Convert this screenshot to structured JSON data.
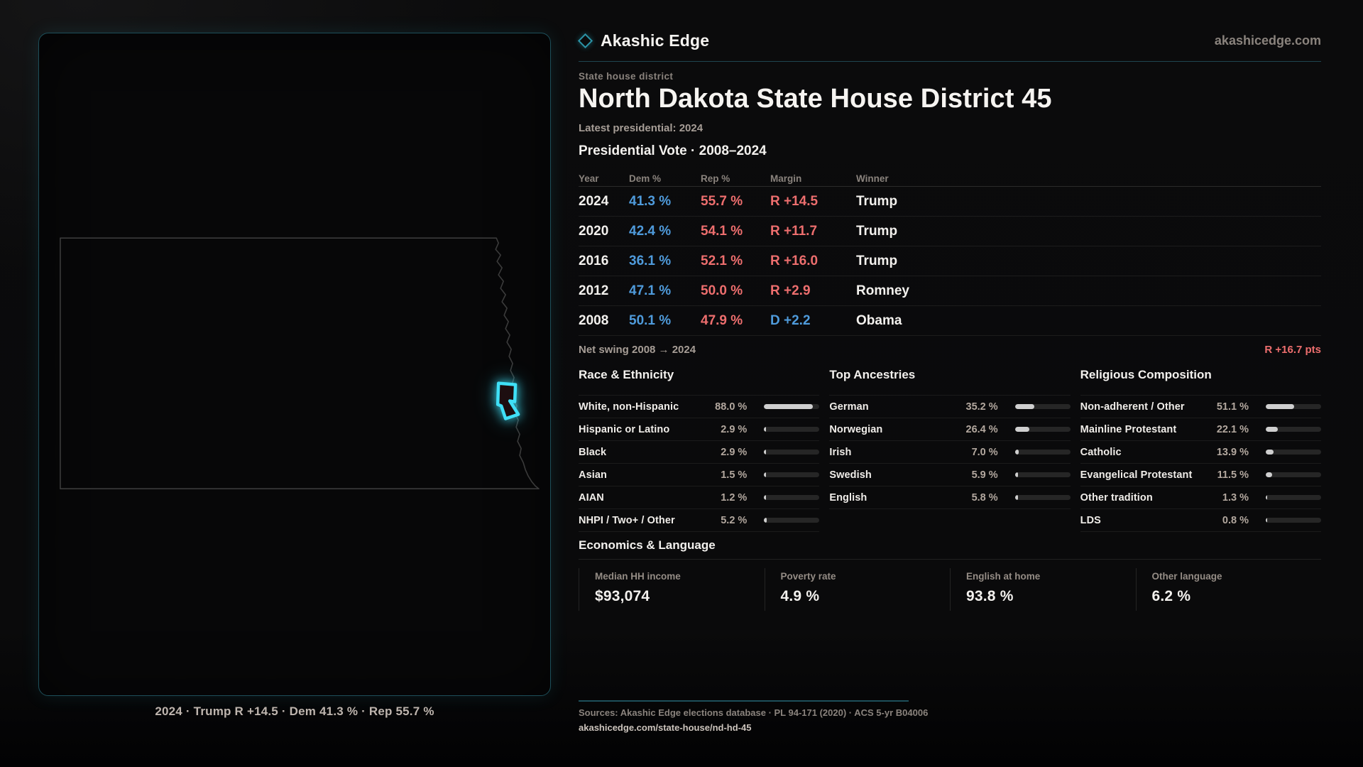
{
  "brand": {
    "name": "Akashic Edge",
    "domain": "akashicedge.com",
    "logo": "diamond-outline-icon"
  },
  "header": {
    "eyebrow": "State house district",
    "title": "North Dakota State House District 45",
    "latest": "Latest presidential: 2024"
  },
  "map": {
    "caption": "2024 · Trump R +14.5 · Dem 41.3 % · Rep 55.7 %",
    "district_color": "#3fe0f7",
    "outline_color": "#3b3b3b"
  },
  "table": {
    "title": "Presidential Vote · 2008–2024",
    "columns": [
      "Year",
      "Dem %",
      "Rep %",
      "Margin",
      "Winner"
    ],
    "rows": [
      {
        "year": "2024",
        "dem": "41.3 %",
        "rep": "55.7 %",
        "margin": "R +14.5",
        "margin_party": "R",
        "winner": "Trump"
      },
      {
        "year": "2020",
        "dem": "42.4 %",
        "rep": "54.1 %",
        "margin": "R +11.7",
        "margin_party": "R",
        "winner": "Trump"
      },
      {
        "year": "2016",
        "dem": "36.1 %",
        "rep": "52.1 %",
        "margin": "R +16.0",
        "margin_party": "R",
        "winner": "Trump"
      },
      {
        "year": "2012",
        "dem": "47.1 %",
        "rep": "50.0 %",
        "margin": "R +2.9",
        "margin_party": "R",
        "winner": "Romney"
      },
      {
        "year": "2008",
        "dem": "50.1 %",
        "rep": "47.9 %",
        "margin": "D +2.2",
        "margin_party": "D",
        "winner": "Obama"
      }
    ]
  },
  "net_swing": {
    "label": "Net swing 2008 → 2024",
    "value": "R +16.7 pts"
  },
  "race": {
    "title": "Race & Ethnicity",
    "items": [
      {
        "label": "White, non-Hispanic",
        "value": "88.0 %",
        "pct": 88.0
      },
      {
        "label": "Hispanic or Latino",
        "value": "2.9 %",
        "pct": 2.9
      },
      {
        "label": "Black",
        "value": "2.9 %",
        "pct": 2.9
      },
      {
        "label": "Asian",
        "value": "1.5 %",
        "pct": 1.5
      },
      {
        "label": "AIAN",
        "value": "1.2 %",
        "pct": 1.2
      },
      {
        "label": "NHPI / Two+ / Other",
        "value": "5.2 %",
        "pct": 5.2
      }
    ]
  },
  "ancestries": {
    "title": "Top Ancestries",
    "items": [
      {
        "label": "German",
        "value": "35.2 %",
        "pct": 35.2
      },
      {
        "label": "Norwegian",
        "value": "26.4 %",
        "pct": 26.4
      },
      {
        "label": "Irish",
        "value": "7.0 %",
        "pct": 7.0
      },
      {
        "label": "Swedish",
        "value": "5.9 %",
        "pct": 5.9
      },
      {
        "label": "English",
        "value": "5.8 %",
        "pct": 5.8
      }
    ]
  },
  "religion": {
    "title": "Religious Composition",
    "items": [
      {
        "label": "Non-adherent / Other",
        "value": "51.1 %",
        "pct": 51.1
      },
      {
        "label": "Mainline Protestant",
        "value": "22.1 %",
        "pct": 22.1
      },
      {
        "label": "Catholic",
        "value": "13.9 %",
        "pct": 13.9
      },
      {
        "label": "Evangelical Protestant",
        "value": "11.5 %",
        "pct": 11.5
      },
      {
        "label": "Other tradition",
        "value": "1.3 %",
        "pct": 1.3
      },
      {
        "label": "LDS",
        "value": "0.8 %",
        "pct": 0.8
      }
    ]
  },
  "economics": {
    "title": "Economics & Language",
    "stats": [
      {
        "label": "Median HH income",
        "value": "$93,074"
      },
      {
        "label": "Poverty rate",
        "value": "4.9 %"
      },
      {
        "label": "English at home",
        "value": "93.8 %"
      },
      {
        "label": "Other language",
        "value": "6.2 %"
      }
    ]
  },
  "footer": {
    "sources": "Sources: Akashic Edge elections database · PL 94-171 (2020) · ACS 5-yr B04006",
    "link": "akashicedge.com/state-house/nd-hd-45"
  },
  "colors": {
    "dem": "#4f9bdc",
    "rep": "#ed6e6e",
    "teal": "#1d4f5a",
    "district": "#3fe0f7"
  }
}
